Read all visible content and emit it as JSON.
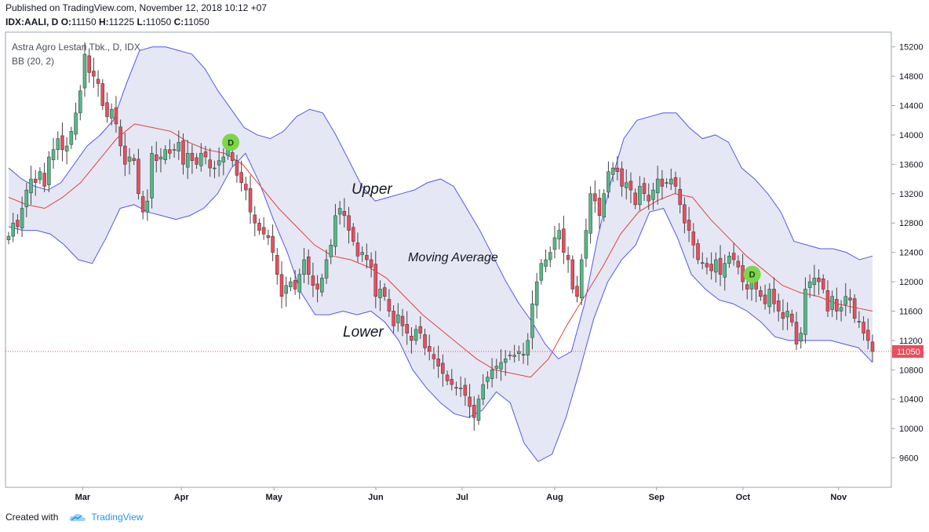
{
  "header": {
    "published": "Published on TradingView.com, November 12, 2018 10:12 +07",
    "symbol": "IDX:AALI, D",
    "o_label": "O:",
    "o_value": "11150",
    "h_label": "H:",
    "h_value": "11225",
    "l_label": "L:",
    "l_value": "11050",
    "c_label": "C:",
    "c_value": "11050"
  },
  "footer": {
    "created_with": "Created with",
    "brand": "TradingView"
  },
  "colors": {
    "up": "#53b987",
    "down": "#eb4d5c",
    "band": "#5059e8",
    "ma": "#e0413b",
    "fill": "#8c91cc",
    "marker": "#7cd64a",
    "last_price": "#eb4d5c"
  },
  "chart_data": {
    "type": "candlestick",
    "title": "Astra Agro Lestari Tbk., D, IDX",
    "indicator": "BB (20, 2)",
    "annotations": [
      "Upper",
      "Moving Average",
      "Lower"
    ],
    "dividend_markers": [
      {
        "label": "D",
        "x": "2018-04-18",
        "price": 13900
      },
      {
        "label": "D",
        "x": "2018-10-04",
        "price": 12100
      }
    ],
    "last_price": 11050,
    "y_ticks": [
      9600,
      10000,
      10400,
      10800,
      11200,
      11600,
      12000,
      12400,
      12800,
      13200,
      13600,
      14000,
      14400,
      14800,
      15200
    ],
    "ylim": [
      9200,
      15400
    ],
    "x_tick_labels": [
      {
        "label": "Mar",
        "date": "2018-03-01"
      },
      {
        "label": "Apr",
        "date": "2018-04-02"
      },
      {
        "label": "May",
        "date": "2018-05-02"
      },
      {
        "label": "Jun",
        "date": "2018-06-04"
      },
      {
        "label": "Jul",
        "date": "2018-07-02"
      },
      {
        "label": "Aug",
        "date": "2018-08-01"
      },
      {
        "label": "Sep",
        "date": "2018-09-03"
      },
      {
        "label": "Oct",
        "date": "2018-10-01"
      },
      {
        "label": "Nov",
        "date": "2018-11-01"
      }
    ],
    "x_start": "2018-02-05",
    "x_end": "2018-11-12",
    "ohlc_close_path": [
      12620,
      12800,
      12750,
      13000,
      13250,
      13400,
      13350,
      13500,
      13300,
      13700,
      13800,
      13950,
      13800,
      13850,
      14050,
      14300,
      14600,
      15100,
      14850,
      14800,
      14700,
      14400,
      14250,
      14350,
      14150,
      13850,
      13600,
      13700,
      13650,
      13200,
      12950,
      13100,
      13750,
      13650,
      13700,
      13800,
      13750,
      13800,
      13900,
      13600,
      13750,
      13650,
      13600,
      13750,
      13700,
      13550,
      13550,
      13650,
      13700,
      13800,
      13650,
      13450,
      13350,
      13250,
      12950,
      12800,
      12700,
      12650,
      12600,
      12400,
      12100,
      11800,
      11950,
      12000,
      11900,
      12100,
      12300,
      12100,
      11950,
      11900,
      12050,
      12300,
      12500,
      12900,
      13000,
      12900,
      12700,
      12550,
      12350,
      12400,
      12300,
      12200,
      11800,
      11900,
      11800,
      11600,
      11400,
      11550,
      11400,
      11300,
      11200,
      11350,
      11300,
      11100,
      11050,
      10950,
      10850,
      10750,
      10650,
      10600,
      10550,
      10550,
      10450,
      10300,
      10150,
      10400,
      10600,
      10700,
      10800,
      10850,
      10900,
      10950,
      11000,
      11000,
      11050,
      11000,
      11200,
      11700,
      12000,
      12250,
      12300,
      12400,
      12600,
      12700,
      12400,
      12300,
      11900,
      11800,
      12300,
      12700,
      13200,
      13100,
      12900,
      13200,
      13500,
      13550,
      13500,
      13300,
      13350,
      13250,
      13050,
      13300,
      13200,
      13100,
      13250,
      13400,
      13300,
      13350,
      13400,
      13300,
      13050,
      12800,
      12700,
      12500,
      12300,
      12250,
      12200,
      12150,
      12300,
      12100,
      12250,
      12350,
      12300,
      12200,
      12000,
      11900,
      12000,
      11900,
      11800,
      11700,
      11900,
      11700,
      11600,
      11500,
      11600,
      11450,
      11150,
      11300,
      11900,
      12000,
      12050,
      12000,
      11900,
      11600,
      11800,
      11600,
      11650,
      11800,
      11750,
      11500,
      11450,
      11300,
      11200,
      11050
    ],
    "bands_upper_path": [
      13550,
      13400,
      13300,
      13250,
      13350,
      13600,
      13850,
      14000,
      14200,
      14700,
      15150,
      15200,
      15200,
      15150,
      15100,
      14900,
      14600,
      14350,
      14100,
      14000,
      13950,
      14050,
      14250,
      14350,
      14300,
      14000,
      13650,
      13300,
      13100,
      13150,
      13200,
      13250,
      13350,
      13400,
      13300,
      13000,
      12700,
      12350,
      12000,
      11700,
      11450,
      11150,
      10950,
      11050,
      11700,
      12600,
      13350,
      13950,
      14200,
      14250,
      14300,
      14300,
      14100,
      13950,
      14000,
      13900,
      13550,
      13400,
      13200,
      12950,
      12550,
      12500,
      12450,
      12450,
      12400,
      12300,
      12350
    ],
    "bands_lower_path": [
      12750,
      12700,
      12700,
      12650,
      12500,
      12300,
      12250,
      12600,
      13000,
      13050,
      12950,
      12900,
      12850,
      12900,
      13000,
      13200,
      13550,
      13750,
      13350,
      12850,
      12400,
      11850,
      11550,
      11550,
      11600,
      11550,
      11600,
      11450,
      11200,
      10800,
      10550,
      10350,
      10200,
      10150,
      10250,
      10500,
      10350,
      9800,
      9550,
      9650,
      10150,
      10800,
      11500,
      12000,
      12300,
      12500,
      12950,
      13000,
      12600,
      12100,
      11900,
      11750,
      11700,
      11600,
      11450,
      11250,
      11200,
      11200,
      11200,
      11200,
      11150,
      11100,
      10900
    ],
    "ma_path": [
      13150,
      13050,
      13000,
      13150,
      13350,
      13650,
      13950,
      14150,
      14100,
      14050,
      13900,
      13800,
      13750,
      13600,
      13300,
      13000,
      12750,
      12500,
      12350,
      12300,
      12200,
      12050,
      11800,
      11550,
      11350,
      11150,
      10950,
      10800,
      10750,
      10700,
      10950,
      11400,
      11800,
      12200,
      12650,
      12950,
      13100,
      13200,
      13150,
      12850,
      12600,
      12350,
      12150,
      11950,
      11850,
      11800,
      11700,
      11650,
      11600
    ]
  }
}
